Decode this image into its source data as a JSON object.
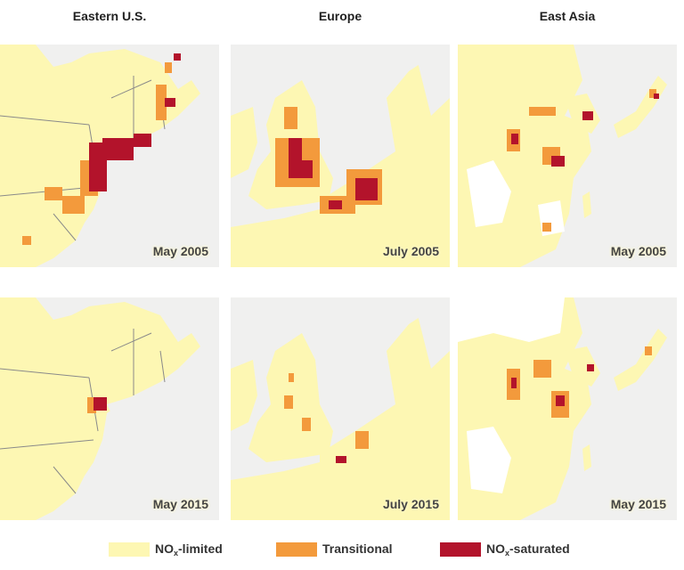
{
  "columns": [
    "Eastern U.S.",
    "Europe",
    "East Asia"
  ],
  "panels": [
    {
      "region": "Eastern U.S.",
      "date": "May 2005"
    },
    {
      "region": "Europe",
      "date": "July 2005"
    },
    {
      "region": "East Asia",
      "date": "May 2005"
    },
    {
      "region": "Eastern U.S.",
      "date": "May 2015"
    },
    {
      "region": "Europe",
      "date": "July 2015"
    },
    {
      "region": "East Asia",
      "date": "May 2015"
    }
  ],
  "legend": {
    "limited": {
      "prefix": "NO",
      "sub": "x",
      "suffix": "-limited",
      "color": "#fdf7b3"
    },
    "transitional": {
      "label": "Transitional",
      "color": "#f39a3c"
    },
    "saturated": {
      "prefix": "NO",
      "sub": "x",
      "suffix": "-saturated",
      "color": "#b3132b"
    }
  },
  "colors": {
    "land": "#fdf7b3",
    "water": "#f0f0ef",
    "border": "#8a8a8a",
    "transitional": "#f39a3c",
    "saturated": "#b3132b"
  }
}
